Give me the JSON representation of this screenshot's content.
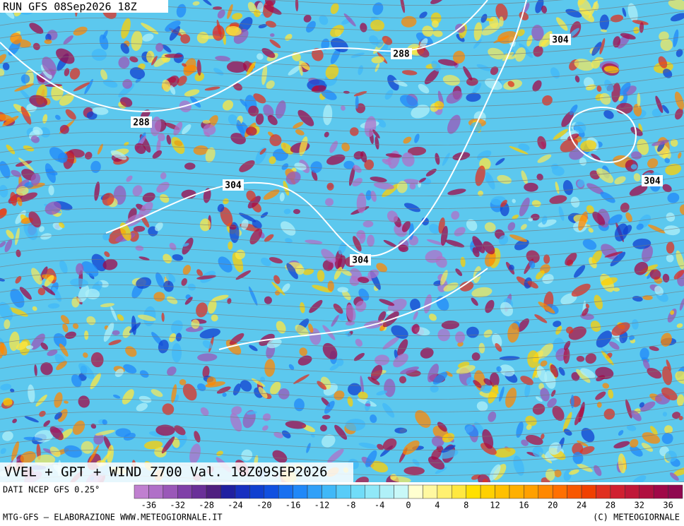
{
  "header": {
    "run": "RUN GFS 08Sep2026 18Z"
  },
  "contour_labels": [
    "288",
    "288",
    "304",
    "304",
    "304",
    "304"
  ],
  "title": "VVEL + GPT + WIND Z700 Val. 18Z09SEP2026",
  "source": "DATI NCEP GFS 0.25°",
  "colorbar": {
    "colors": [
      "#c080d0",
      "#b070c8",
      "#9a58b8",
      "#8040a8",
      "#6a3098",
      "#502080",
      "#2020a0",
      "#1830c0",
      "#1040d0",
      "#1050e0",
      "#1870f0",
      "#2088f8",
      "#30a0f8",
      "#40b8f8",
      "#58ccf8",
      "#70dcf8",
      "#90e8f8",
      "#b0f0f8",
      "#c8f8f8",
      "#ffffd0",
      "#fff8a0",
      "#fff070",
      "#ffe840",
      "#ffe000",
      "#ffd000",
      "#ffc000",
      "#ffb000",
      "#ffa000",
      "#ff8800",
      "#ff7000",
      "#f85800",
      "#f04000",
      "#e03020",
      "#d02030",
      "#c01838",
      "#b01040",
      "#a00848",
      "#900850"
    ],
    "ticks": [
      -36,
      -32,
      -28,
      -24,
      -20,
      -16,
      -12,
      -8,
      -4,
      0,
      4,
      8,
      12,
      16,
      20,
      24,
      28,
      32,
      36
    ]
  },
  "footer": {
    "left": "MTG-GFS — ELABORAZIONE WWW.METEOGIORNALE.IT",
    "right": "(C) METEOGIORNALE"
  }
}
